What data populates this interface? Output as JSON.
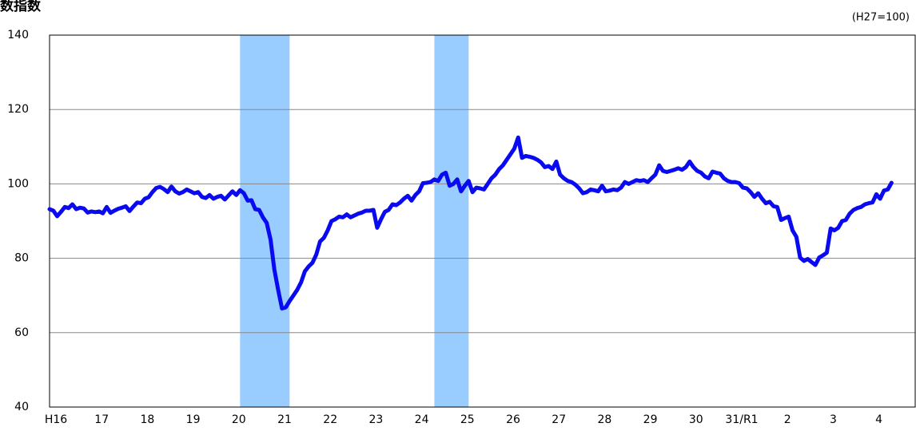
{
  "chart_data": {
    "type": "line",
    "title": "数指数",
    "note": "(H27=100)",
    "categories": [
      "H16",
      null,
      null,
      null,
      null,
      null,
      null,
      null,
      null,
      null,
      null,
      null,
      "17",
      null,
      null,
      null,
      null,
      null,
      null,
      null,
      null,
      null,
      null,
      null,
      "18",
      null,
      null,
      null,
      null,
      null,
      null,
      null,
      null,
      null,
      null,
      null,
      "19",
      null,
      null,
      null,
      null,
      null,
      null,
      null,
      null,
      null,
      null,
      null,
      "20",
      null,
      null,
      null,
      null,
      null,
      null,
      null,
      null,
      null,
      null,
      null,
      "21",
      null,
      null,
      null,
      null,
      null,
      null,
      null,
      null,
      null,
      null,
      null,
      "22",
      null,
      null,
      null,
      null,
      null,
      null,
      null,
      null,
      null,
      null,
      null,
      "23",
      null,
      null,
      null,
      null,
      null,
      null,
      null,
      null,
      null,
      null,
      null,
      "24",
      null,
      null,
      null,
      null,
      null,
      null,
      null,
      null,
      null,
      null,
      null,
      "25",
      null,
      null,
      null,
      null,
      null,
      null,
      null,
      null,
      null,
      null,
      null,
      "26",
      null,
      null,
      null,
      null,
      null,
      null,
      null,
      null,
      null,
      null,
      null,
      "27",
      null,
      null,
      null,
      null,
      null,
      null,
      null,
      null,
      null,
      null,
      null,
      "28",
      null,
      null,
      null,
      null,
      null,
      null,
      null,
      null,
      null,
      null,
      null,
      "29",
      null,
      null,
      null,
      null,
      null,
      null,
      null,
      null,
      null,
      null,
      null,
      "30",
      null,
      null,
      null,
      null,
      null,
      null,
      null,
      null,
      null,
      null,
      null,
      "31/R1",
      null,
      null,
      null,
      null,
      null,
      null,
      null,
      null,
      null,
      null,
      null,
      "2",
      null,
      null,
      null,
      null,
      null,
      null,
      null,
      null,
      null,
      null,
      null,
      "3",
      null,
      null,
      null,
      null,
      null,
      null,
      null,
      null,
      null,
      null,
      null,
      "4",
      null,
      null,
      null,
      null,
      null
    ],
    "values": [
      93.2,
      92.8,
      91.3,
      92.5,
      93.8,
      93.5,
      94.5,
      93.2,
      93.6,
      93.4,
      92.3,
      92.6,
      92.4,
      92.6,
      92.1,
      93.8,
      92.2,
      92.8,
      93.3,
      93.6,
      94.0,
      92.7,
      93.9,
      95.0,
      94.8,
      96.0,
      96.4,
      97.8,
      98.9,
      99.2,
      98.6,
      97.8,
      99.3,
      98.0,
      97.4,
      97.8,
      98.5,
      98.0,
      97.5,
      97.8,
      96.5,
      96.2,
      97.0,
      96.0,
      96.5,
      96.8,
      95.8,
      96.9,
      98.0,
      97.0,
      98.3,
      97.5,
      95.5,
      95.6,
      93.2,
      93.0,
      91.0,
      89.5,
      85.0,
      77.0,
      71.5,
      66.5,
      66.8,
      68.5,
      70.0,
      71.5,
      73.5,
      76.5,
      77.8,
      78.8,
      81.0,
      84.5,
      85.5,
      87.5,
      90.0,
      90.5,
      91.2,
      91.0,
      91.8,
      91.0,
      91.5,
      92.0,
      92.3,
      92.8,
      92.8,
      93.0,
      88.2,
      90.5,
      92.5,
      93.0,
      94.5,
      94.3,
      95.0,
      96.0,
      96.8,
      95.5,
      97.0,
      98.0,
      100.2,
      100.3,
      100.5,
      101.2,
      100.8,
      102.5,
      103.0,
      99.5,
      100.0,
      101.2,
      98.0,
      99.5,
      100.8,
      97.8,
      99.0,
      98.8,
      98.5,
      100.0,
      101.5,
      102.5,
      104.0,
      105.0,
      106.5,
      108.0,
      109.5,
      112.5,
      107.0,
      107.5,
      107.3,
      107.0,
      106.5,
      105.8,
      104.5,
      104.8,
      104.0,
      106.0,
      102.5,
      101.5,
      100.8,
      100.5,
      99.8,
      98.8,
      97.5,
      97.8,
      98.5,
      98.3,
      98.0,
      99.5,
      98.0,
      98.2,
      98.5,
      98.3,
      99.0,
      100.5,
      100.0,
      100.5,
      101.0,
      100.8,
      101.0,
      100.5,
      101.5,
      102.5,
      105.0,
      103.5,
      103.2,
      103.5,
      103.8,
      104.2,
      103.8,
      104.5,
      106.0,
      104.5,
      103.5,
      103.0,
      102.0,
      101.5,
      103.3,
      103.0,
      102.8,
      101.5,
      100.8,
      100.5,
      100.5,
      100.2,
      99.0,
      98.8,
      97.8,
      96.5,
      97.5,
      96.0,
      94.8,
      95.2,
      94.0,
      93.8,
      90.3,
      90.8,
      91.2,
      87.5,
      85.8,
      80.2,
      79.3,
      79.8,
      79.0,
      78.2,
      80.2,
      80.8,
      81.5,
      88.0,
      87.5,
      88.2,
      90.0,
      90.3,
      92.0,
      93.0,
      93.5,
      93.8,
      94.5,
      94.8,
      95.0,
      97.2,
      96.0,
      98.2,
      98.5,
      100.3
    ],
    "color": "#0a0af0",
    "shade_color": "#99ccff",
    "shaded_ranges": [
      [
        50,
        63
      ],
      [
        101,
        110
      ]
    ],
    "ylim": [
      40,
      140
    ],
    "yticks": [
      40,
      60,
      80,
      100,
      120,
      140
    ],
    "grid": true
  }
}
